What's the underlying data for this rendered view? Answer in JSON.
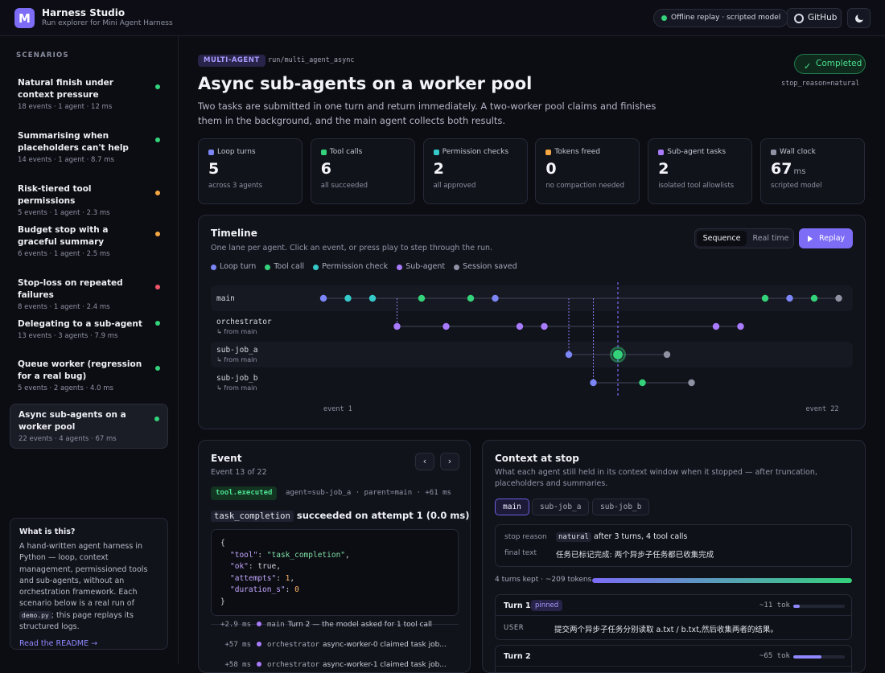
{
  "app": {
    "logo_letter": "M",
    "title": "Harness Studio",
    "subtitle": "Run explorer for Mini Agent Harness"
  },
  "header": {
    "status_pill": "Offline replay · scripted model",
    "github_label": "GitHub",
    "theme_icon": "moon-icon"
  },
  "sidebar": {
    "heading": "SCENARIOS",
    "scenarios": [
      {
        "title": "Natural finish under context pressure",
        "meta": "18 events · 1 agent · 12 ms",
        "status": "ok"
      },
      {
        "title": "Summarising when placeholders can't help",
        "meta": "14 events · 1 agent · 8.7 ms",
        "status": "ok"
      },
      {
        "title": "Risk-tiered tool permissions",
        "meta": "5 events · 1 agent · 2.3 ms",
        "status": "warn"
      },
      {
        "title": "Budget stop with a graceful summary",
        "meta": "6 events · 1 agent · 2.5 ms",
        "status": "warn"
      },
      {
        "title": "Stop-loss on repeated failures",
        "meta": "8 events · 1 agent · 2.4 ms",
        "status": "error"
      },
      {
        "title": "Delegating to a sub-agent",
        "meta": "13 events · 3 agents · 7.9 ms",
        "status": "ok"
      },
      {
        "title": "Queue worker (regression for a real bug)",
        "meta": "5 events · 2 agents · 4.0 ms",
        "status": "ok"
      },
      {
        "title": "Async sub-agents on a worker pool",
        "meta": "22 events · 4 agents · 67 ms",
        "status": "ok",
        "active": true
      }
    ],
    "status_colors": {
      "ok": "#34d27a",
      "warn": "#f5a742",
      "error": "#f0556a"
    },
    "about": {
      "title": "What is this?",
      "body_1": "A hand-written agent harness in Python — loop, context management, permissioned tools and sub-agents, without an orchestration framework. Each scenario below is a real run of",
      "code": "demo.py",
      "body_2": "; this page replays its structured logs.",
      "link": "Read the README →"
    }
  },
  "run": {
    "badge": "MULTI-AGENT",
    "path": "run/multi_agent_async",
    "title": "Async sub-agents on a worker pool",
    "description": "Two tasks are submitted in one turn and return immediately. A two-worker pool claims and finishes them in the background, and the main agent collects both results.",
    "status": "Completed",
    "stop_reason": "stop_reason=natural"
  },
  "stats": [
    {
      "label": "Loop turns",
      "value": "5",
      "unit": "",
      "sub": "across 3 agents",
      "color": "#7c86f6"
    },
    {
      "label": "Tool calls",
      "value": "6",
      "unit": "",
      "sub": "all succeeded",
      "color": "#34d27a"
    },
    {
      "label": "Permission checks",
      "value": "2",
      "unit": "",
      "sub": "all approved",
      "color": "#36c9c9"
    },
    {
      "label": "Tokens freed",
      "value": "0",
      "unit": "",
      "sub": "no compaction needed",
      "color": "#f5a742"
    },
    {
      "label": "Sub-agent tasks",
      "value": "2",
      "unit": "",
      "sub": "isolated tool allowlists",
      "color": "#a97bff"
    },
    {
      "label": "Wall clock",
      "value": "67",
      "unit": "ms",
      "sub": "scripted model",
      "color": "#8e92a3"
    }
  ],
  "timeline": {
    "title": "Timeline",
    "subtitle": "One lane per agent. Click an event, or press play to step through the run.",
    "seg_sequence": "Sequence",
    "seg_realtime": "Real time",
    "replay": "Replay",
    "legend": [
      {
        "label": "Loop turn",
        "color": "#7c86f6"
      },
      {
        "label": "Tool call",
        "color": "#34d27a"
      },
      {
        "label": "Permission check",
        "color": "#36c9c9"
      },
      {
        "label": "Sub-agent",
        "color": "#a97bff"
      },
      {
        "label": "Session saved",
        "color": "#8e92a3"
      }
    ],
    "lanes": [
      {
        "name": "main",
        "sub": ""
      },
      {
        "name": "orchestrator",
        "sub": "↳ from main"
      },
      {
        "name": "sub-job_a",
        "sub": "↳ from main"
      },
      {
        "name": "sub-job_b",
        "sub": "↳ from main"
      }
    ],
    "events": [
      {
        "i": 1,
        "lane": 0,
        "kind": "loop"
      },
      {
        "i": 2,
        "lane": 0,
        "kind": "perm"
      },
      {
        "i": 3,
        "lane": 0,
        "kind": "perm"
      },
      {
        "i": 4,
        "lane": 1,
        "kind": "sub"
      },
      {
        "i": 5,
        "lane": 0,
        "kind": "tool"
      },
      {
        "i": 6,
        "lane": 1,
        "kind": "sub"
      },
      {
        "i": 7,
        "lane": 0,
        "kind": "tool"
      },
      {
        "i": 8,
        "lane": 0,
        "kind": "loop"
      },
      {
        "i": 9,
        "lane": 1,
        "kind": "sub"
      },
      {
        "i": 10,
        "lane": 1,
        "kind": "sub"
      },
      {
        "i": 11,
        "lane": 2,
        "kind": "loop"
      },
      {
        "i": 12,
        "lane": 3,
        "kind": "loop"
      },
      {
        "i": 13,
        "lane": 2,
        "kind": "tool",
        "selected": true
      },
      {
        "i": 14,
        "lane": 3,
        "kind": "tool"
      },
      {
        "i": 15,
        "lane": 2,
        "kind": "saved"
      },
      {
        "i": 16,
        "lane": 3,
        "kind": "saved"
      },
      {
        "i": 17,
        "lane": 1,
        "kind": "sub"
      },
      {
        "i": 18,
        "lane": 1,
        "kind": "sub"
      },
      {
        "i": 19,
        "lane": 0,
        "kind": "tool"
      },
      {
        "i": 20,
        "lane": 0,
        "kind": "loop"
      },
      {
        "i": 21,
        "lane": 0,
        "kind": "tool"
      },
      {
        "i": 22,
        "lane": 0,
        "kind": "saved"
      }
    ],
    "spawn_links": [
      {
        "at": 4,
        "from_lane": 0,
        "to_lane": 1
      },
      {
        "at": 11,
        "from_lane": 0,
        "to_lane": 2
      },
      {
        "at": 12,
        "from_lane": 0,
        "to_lane": 3
      }
    ],
    "axis_start": "event 1",
    "axis_end": "event 22"
  },
  "event": {
    "title": "Event",
    "position": "Event 13 of 22",
    "kind": "tool.executed",
    "meta": "agent=sub-job_a · parent=main · +61 ms",
    "tool": "task_completion",
    "headline": "succeeded on attempt 1 (0.0 ms)",
    "json": {
      "tool": "\"task_completion\"",
      "ok": "true",
      "attempts": "1",
      "duration_s": "0"
    },
    "log": [
      {
        "time": "+2.9 ms",
        "agent": "main",
        "text": "Turn 2 — the model asked for 1 tool call"
      },
      {
        "time": "+57 ms",
        "agent": "orchestrator",
        "text": "async-worker-0 claimed task job..."
      },
      {
        "time": "+58 ms",
        "agent": "orchestrator",
        "text": "async-worker-1 claimed task job..."
      }
    ]
  },
  "context": {
    "title": "Context at stop",
    "subtitle": "What each agent still held in its context window when it stopped — after truncation, placeholders and summaries.",
    "tabs": [
      "main",
      "sub-job_a",
      "sub-job_b"
    ],
    "stop_reason_label": "stop reason",
    "stop_reason_code": "natural",
    "stop_reason_text": "after 3 turns, 4 tool calls",
    "final_text_label": "final text",
    "final_text": "任务已标记完成: 两个异步子任务都已收集完成",
    "kept": "4 turns kept · ~209 tokens",
    "kept_fraction": 1.0,
    "turns": [
      {
        "name": "Turn 1",
        "pinned": "pinned",
        "tokens": "~11 tok",
        "fraction": 0.12,
        "role": "USER",
        "message": "提交两个异步子任务分别读取 a.txt / b.txt,然后收集两者的结果。"
      },
      {
        "name": "Turn 2",
        "pinned": "",
        "tokens": "~65 tok",
        "fraction": 0.55,
        "role": "",
        "message": ""
      }
    ]
  }
}
